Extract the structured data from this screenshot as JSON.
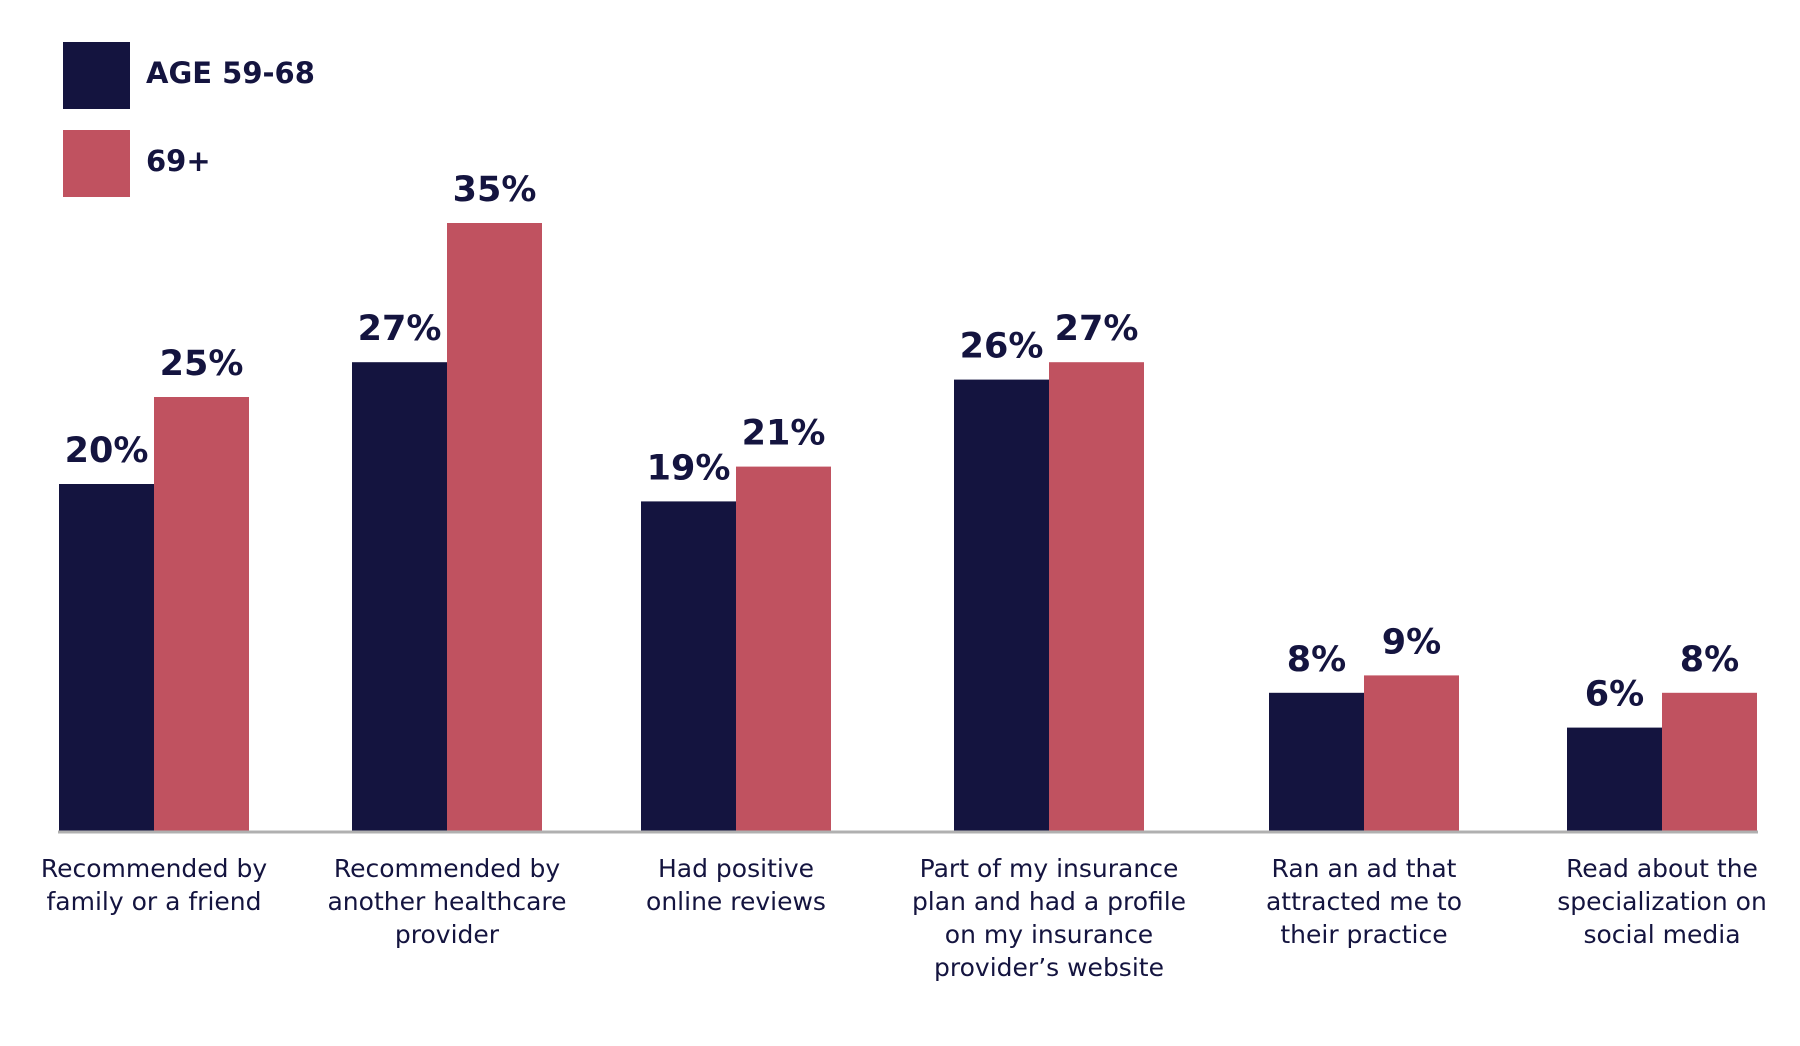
{
  "chart_data": {
    "type": "bar",
    "categories": [
      "Recommended by family or a friend",
      "Recommended by another healthcare provider",
      "Had positive online reviews",
      "Part of my insurance plan and had a profile on my insurance provider’s website",
      "Ran an ad that attracted me to their practice",
      "Read about the specialization on social media"
    ],
    "series": [
      {
        "name": "AGE 59-68",
        "color": "#14143f",
        "values": [
          20,
          27,
          19,
          26,
          8,
          6
        ],
        "value_labels": [
          "20%",
          "27%",
          "19%",
          "26%",
          "8%",
          "6%"
        ]
      },
      {
        "name": "69+",
        "color": "#c05260",
        "values": [
          25,
          35,
          21,
          27,
          9,
          8
        ],
        "value_labels": [
          "25%",
          "35%",
          "21%",
          "27%",
          "9%",
          "8%"
        ]
      }
    ],
    "legend": "top-left"
  }
}
